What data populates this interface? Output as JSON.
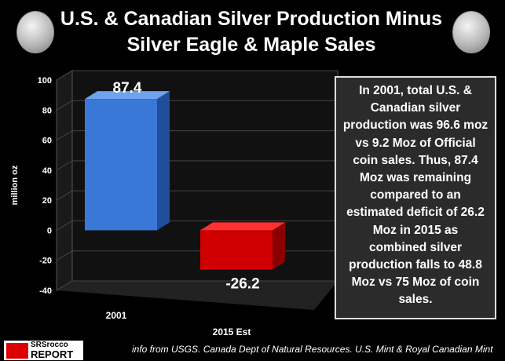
{
  "chart_data": {
    "type": "bar",
    "title": "U.S. & Canadian Silver Production Minus Silver Eagle & Maple Sales",
    "title_lines": [
      "U.S. & Canadian Silver Production Minus",
      "Silver Eagle & Maple Sales"
    ],
    "categories": [
      "2001",
      "2015 Est"
    ],
    "values": [
      87.4,
      -26.2
    ],
    "data_labels": [
      "87.4",
      "-26.2"
    ],
    "colors": [
      "#3a78d8",
      "#d00000"
    ],
    "ylabel": "million oz",
    "ylim": [
      -40,
      100
    ],
    "yticks": [
      "100",
      "80",
      "60",
      "40",
      "20",
      "0",
      "-20",
      "-40"
    ],
    "grid": true,
    "style": "3d"
  },
  "annotation": "In 2001, total U.S. & Canadian silver production was 96.6 moz vs 9.2 Moz of Official coin sales. Thus, 87.4 Moz was remaining compared to an estimated deficit of 26.2 Moz in 2015 as combined silver production falls to 48.8 Moz vs 75 Moz of coin sales.",
  "source": "info from USGS. Canada Dept of Natural Resources. U.S. Mint & Royal Canadian Mint",
  "logo": {
    "line1": "SRSrocco",
    "line2": "REPORT"
  }
}
